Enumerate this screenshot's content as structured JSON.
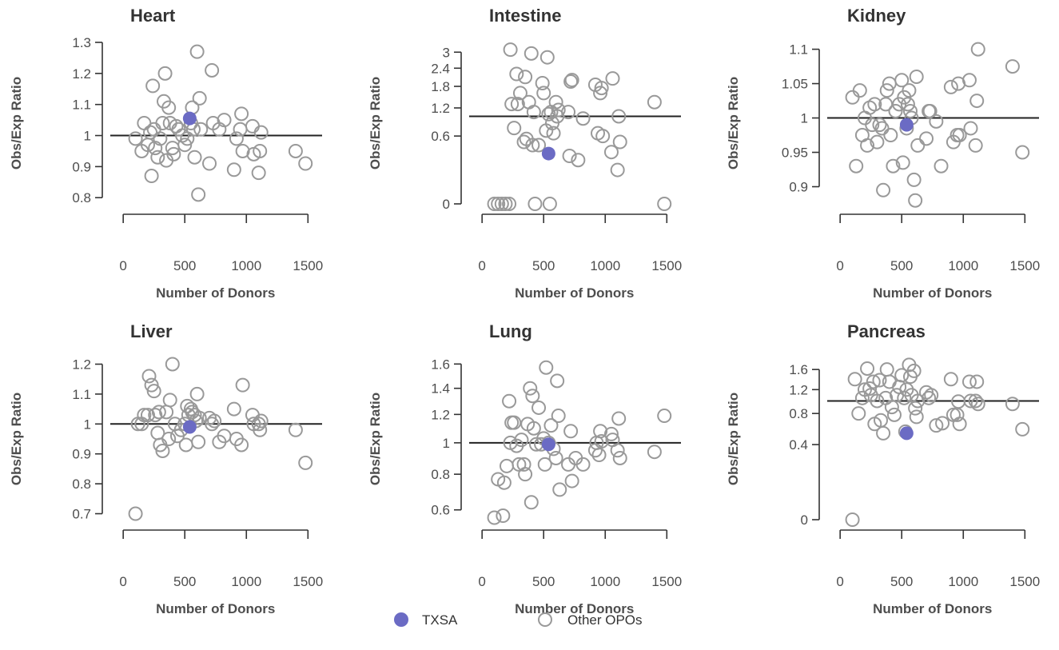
{
  "figure": {
    "legend": {
      "placement": "bottom-center",
      "entries": [
        {
          "label": "TXSA",
          "marker": "filled-circle",
          "color": "#6b6bc4"
        },
        {
          "label": "Other OPOs",
          "marker": "open-circle",
          "color": "#999999"
        }
      ]
    },
    "colors": {
      "highlight": "#6b6bc4",
      "others": "#999999",
      "reference_line": "#222222"
    }
  },
  "chart_data": [
    {
      "type": "scatter",
      "title": "Heart",
      "xlabel": "Number of Donors",
      "ylabel": "Obs/Exp Ratio",
      "x_ticks": [
        "0",
        "500",
        "1000",
        "1500"
      ],
      "y_ticks": [
        "0.8",
        "0.9",
        "1",
        "1.1",
        "1.2",
        "1.3"
      ],
      "xlim": [
        -40,
        1550
      ],
      "ylim": [
        0.78,
        1.3
      ],
      "reference_line_y": 1,
      "highlight": {
        "name": "TXSA",
        "x": 540,
        "y": 1.055
      },
      "others": [
        [
          100,
          0.99
        ],
        [
          150,
          0.95
        ],
        [
          170,
          1.04
        ],
        [
          200,
          0.97
        ],
        [
          220,
          1.01
        ],
        [
          230,
          0.87
        ],
        [
          240,
          1.16
        ],
        [
          250,
          1.02
        ],
        [
          260,
          0.96
        ],
        [
          280,
          0.93
        ],
        [
          300,
          0.99
        ],
        [
          320,
          1.04
        ],
        [
          330,
          1.11
        ],
        [
          340,
          1.2
        ],
        [
          350,
          0.92
        ],
        [
          370,
          1.09
        ],
        [
          380,
          1.04
        ],
        [
          400,
          0.96
        ],
        [
          410,
          0.94
        ],
        [
          430,
          1.03
        ],
        [
          450,
          1.02
        ],
        [
          480,
          1
        ],
        [
          500,
          0.97
        ],
        [
          520,
          0.99
        ],
        [
          550,
          1.04
        ],
        [
          560,
          1.09
        ],
        [
          570,
          1.02
        ],
        [
          580,
          0.93
        ],
        [
          600,
          1.27
        ],
        [
          610,
          0.81
        ],
        [
          620,
          1.12
        ],
        [
          630,
          1.02
        ],
        [
          700,
          0.91
        ],
        [
          720,
          1.21
        ],
        [
          730,
          1.04
        ],
        [
          780,
          1.02
        ],
        [
          820,
          1.05
        ],
        [
          900,
          0.89
        ],
        [
          920,
          0.99
        ],
        [
          950,
          1.02
        ],
        [
          960,
          1.07
        ],
        [
          970,
          0.95
        ],
        [
          1050,
          1.03
        ],
        [
          1060,
          0.94
        ],
        [
          1100,
          0.88
        ],
        [
          1110,
          0.95
        ],
        [
          1120,
          1.01
        ],
        [
          1400,
          0.95
        ],
        [
          1480,
          0.91
        ]
      ]
    },
    {
      "type": "scatter",
      "title": "Intestine",
      "xlabel": "Number of Donors",
      "ylabel": "Obs/Exp Ratio",
      "x_ticks": [
        "0",
        "500",
        "1000",
        "1500"
      ],
      "y_ticks": [
        "0",
        "0.6",
        "1.2",
        "1.8",
        "2.4",
        "3"
      ],
      "scale": "sqrt",
      "xlim": [
        -40,
        1550
      ],
      "ylim": [
        0,
        3.4
      ],
      "reference_line_y": 1,
      "highlight": {
        "name": "TXSA",
        "x": 540,
        "y": 0.33
      },
      "others": [
        [
          100,
          0
        ],
        [
          130,
          0
        ],
        [
          160,
          0
        ],
        [
          190,
          0
        ],
        [
          220,
          0
        ],
        [
          230,
          3.1
        ],
        [
          240,
          1.3
        ],
        [
          260,
          0.75
        ],
        [
          280,
          2.2
        ],
        [
          290,
          1.3
        ],
        [
          310,
          1.6
        ],
        [
          340,
          0.5
        ],
        [
          350,
          2.1
        ],
        [
          360,
          0.55
        ],
        [
          380,
          1.35
        ],
        [
          400,
          2.95
        ],
        [
          410,
          0.45
        ],
        [
          420,
          1.1
        ],
        [
          430,
          0
        ],
        [
          460,
          0.45
        ],
        [
          490,
          1.9
        ],
        [
          500,
          1.6
        ],
        [
          520,
          0.7
        ],
        [
          530,
          2.8
        ],
        [
          540,
          1.05
        ],
        [
          550,
          0
        ],
        [
          560,
          1.1
        ],
        [
          570,
          0.85
        ],
        [
          580,
          0.65
        ],
        [
          600,
          1.35
        ],
        [
          610,
          1
        ],
        [
          620,
          1.15
        ],
        [
          700,
          1.1
        ],
        [
          710,
          0.3
        ],
        [
          720,
          1.95
        ],
        [
          730,
          2
        ],
        [
          780,
          0.25
        ],
        [
          820,
          0.95
        ],
        [
          920,
          1.85
        ],
        [
          940,
          0.65
        ],
        [
          960,
          1.6
        ],
        [
          970,
          1.75
        ],
        [
          980,
          0.6
        ],
        [
          1050,
          0.35
        ],
        [
          1060,
          2.05
        ],
        [
          1100,
          0.15
        ],
        [
          1110,
          1
        ],
        [
          1120,
          0.5
        ],
        [
          1400,
          1.35
        ],
        [
          1480,
          0
        ]
      ]
    },
    {
      "type": "scatter",
      "title": "Kidney",
      "xlabel": "Number of Donors",
      "ylabel": "Obs/Exp Ratio",
      "x_ticks": [
        "0",
        "500",
        "1000",
        "1500"
      ],
      "y_ticks": [
        "0.9",
        "0.95",
        "1",
        "1.05",
        "1.1"
      ],
      "xlim": [
        -40,
        1550
      ],
      "ylim": [
        0.875,
        1.11
      ],
      "reference_line_y": 1,
      "highlight": {
        "name": "TXSA",
        "x": 540,
        "y": 0.99
      },
      "others": [
        [
          100,
          1.03
        ],
        [
          130,
          0.93
        ],
        [
          160,
          1.04
        ],
        [
          180,
          0.975
        ],
        [
          200,
          1
        ],
        [
          220,
          0.96
        ],
        [
          240,
          1.015
        ],
        [
          260,
          0.99
        ],
        [
          280,
          1.02
        ],
        [
          300,
          0.965
        ],
        [
          320,
          0.99
        ],
        [
          340,
          0.985
        ],
        [
          350,
          0.895
        ],
        [
          370,
          1.02
        ],
        [
          380,
          1.04
        ],
        [
          400,
          1.05
        ],
        [
          410,
          0.975
        ],
        [
          430,
          0.93
        ],
        [
          450,
          1.01
        ],
        [
          480,
          1.02
        ],
        [
          500,
          1.055
        ],
        [
          510,
          0.935
        ],
        [
          520,
          1.03
        ],
        [
          540,
          0.985
        ],
        [
          550,
          1.02
        ],
        [
          560,
          1.04
        ],
        [
          570,
          1.01
        ],
        [
          580,
          1
        ],
        [
          600,
          0.91
        ],
        [
          610,
          0.88
        ],
        [
          620,
          1.06
        ],
        [
          630,
          0.96
        ],
        [
          700,
          0.97
        ],
        [
          720,
          1.01
        ],
        [
          730,
          1.01
        ],
        [
          780,
          0.995
        ],
        [
          820,
          0.93
        ],
        [
          900,
          1.045
        ],
        [
          920,
          0.965
        ],
        [
          950,
          0.975
        ],
        [
          960,
          1.05
        ],
        [
          970,
          0.975
        ],
        [
          1050,
          1.055
        ],
        [
          1060,
          0.985
        ],
        [
          1100,
          0.96
        ],
        [
          1110,
          1.025
        ],
        [
          1120,
          1.1
        ],
        [
          1400,
          1.075
        ],
        [
          1480,
          0.95
        ]
      ]
    },
    {
      "type": "scatter",
      "title": "Liver",
      "xlabel": "Number of Donors",
      "ylabel": "Obs/Exp Ratio",
      "x_ticks": [
        "0",
        "500",
        "1000",
        "1500"
      ],
      "y_ticks": [
        "0.7",
        "0.8",
        "0.9",
        "1",
        "1.1",
        "1.2"
      ],
      "xlim": [
        -40,
        1550
      ],
      "ylim": [
        0.68,
        1.22
      ],
      "reference_line_y": 1,
      "highlight": {
        "name": "TXSA",
        "x": 540,
        "y": 0.99
      },
      "others": [
        [
          100,
          0.7
        ],
        [
          120,
          1
        ],
        [
          150,
          1
        ],
        [
          170,
          1.03
        ],
        [
          200,
          1.03
        ],
        [
          210,
          1.16
        ],
        [
          230,
          1.13
        ],
        [
          250,
          1.11
        ],
        [
          260,
          1.03
        ],
        [
          280,
          0.97
        ],
        [
          290,
          1.04
        ],
        [
          300,
          0.93
        ],
        [
          320,
          0.91
        ],
        [
          350,
          1.04
        ],
        [
          370,
          0.95
        ],
        [
          380,
          1.08
        ],
        [
          400,
          1.2
        ],
        [
          420,
          1
        ],
        [
          440,
          0.96
        ],
        [
          470,
          0.98
        ],
        [
          500,
          1
        ],
        [
          510,
          0.93
        ],
        [
          520,
          1.06
        ],
        [
          530,
          1.03
        ],
        [
          550,
          1.05
        ],
        [
          560,
          1.04
        ],
        [
          580,
          1.03
        ],
        [
          590,
          1.01
        ],
        [
          600,
          1.1
        ],
        [
          610,
          0.94
        ],
        [
          620,
          1.02
        ],
        [
          700,
          1.02
        ],
        [
          720,
          1
        ],
        [
          740,
          1.01
        ],
        [
          780,
          0.94
        ],
        [
          820,
          0.96
        ],
        [
          900,
          1.05
        ],
        [
          920,
          0.95
        ],
        [
          960,
          0.93
        ],
        [
          970,
          1.13
        ],
        [
          1050,
          1.03
        ],
        [
          1060,
          1
        ],
        [
          1100,
          1
        ],
        [
          1110,
          0.98
        ],
        [
          1120,
          1.01
        ],
        [
          1400,
          0.98
        ],
        [
          1480,
          0.87
        ]
      ]
    },
    {
      "type": "scatter",
      "title": "Lung",
      "xlabel": "Number of Donors",
      "ylabel": "Obs/Exp Ratio",
      "x_ticks": [
        "0",
        "500",
        "1000",
        "1500"
      ],
      "y_ticks": [
        "0.6",
        "0.8",
        "1",
        "1.2",
        "1.4",
        "1.6"
      ],
      "scale": "sqrt",
      "xlim": [
        -40,
        1550
      ],
      "ylim": [
        0.55,
        1.65
      ],
      "reference_line_y": 1,
      "highlight": {
        "name": "TXSA",
        "x": 540,
        "y": 0.99
      },
      "others": [
        [
          100,
          0.56
        ],
        [
          130,
          0.77
        ],
        [
          170,
          0.57
        ],
        [
          180,
          0.75
        ],
        [
          200,
          0.85
        ],
        [
          220,
          1.3
        ],
        [
          230,
          1
        ],
        [
          240,
          1.14
        ],
        [
          260,
          1.14
        ],
        [
          280,
          0.98
        ],
        [
          300,
          0.86
        ],
        [
          320,
          1.02
        ],
        [
          340,
          0.86
        ],
        [
          350,
          0.8
        ],
        [
          370,
          1.13
        ],
        [
          390,
          1.4
        ],
        [
          400,
          0.64
        ],
        [
          410,
          1.34
        ],
        [
          420,
          1.1
        ],
        [
          440,
          0.99
        ],
        [
          460,
          1.25
        ],
        [
          480,
          0.99
        ],
        [
          500,
          1.03
        ],
        [
          510,
          0.86
        ],
        [
          520,
          1.57
        ],
        [
          540,
          1
        ],
        [
          560,
          1.12
        ],
        [
          580,
          0.96
        ],
        [
          600,
          0.9
        ],
        [
          610,
          1.46
        ],
        [
          620,
          1.19
        ],
        [
          630,
          0.71
        ],
        [
          700,
          0.86
        ],
        [
          720,
          1.08
        ],
        [
          730,
          0.76
        ],
        [
          760,
          0.9
        ],
        [
          820,
          0.86
        ],
        [
          920,
          0.95
        ],
        [
          930,
          1
        ],
        [
          950,
          0.92
        ],
        [
          960,
          1.08
        ],
        [
          970,
          1.01
        ],
        [
          1050,
          1.06
        ],
        [
          1060,
          1.02
        ],
        [
          1100,
          0.95
        ],
        [
          1110,
          1.17
        ],
        [
          1120,
          0.9
        ],
        [
          1400,
          0.94
        ],
        [
          1480,
          1.19
        ]
      ]
    },
    {
      "type": "scatter",
      "title": "Pancreas",
      "xlabel": "Number of Donors",
      "ylabel": "Obs/Exp Ratio",
      "x_ticks": [
        "0",
        "500",
        "1000",
        "1500"
      ],
      "y_ticks": [
        "0",
        "0.4",
        "0.8",
        "1.2",
        "1.6"
      ],
      "scale": "sqrt",
      "xlim": [
        -40,
        1550
      ],
      "ylim": [
        0,
        1.85
      ],
      "reference_line_y": 1,
      "highlight": {
        "name": "TXSA",
        "x": 540,
        "y": 0.53
      },
      "others": [
        [
          100,
          0
        ],
        [
          120,
          1.4
        ],
        [
          150,
          0.8
        ],
        [
          180,
          1.05
        ],
        [
          200,
          1.2
        ],
        [
          220,
          1.62
        ],
        [
          240,
          1.22
        ],
        [
          250,
          1.1
        ],
        [
          270,
          1.35
        ],
        [
          280,
          0.65
        ],
        [
          300,
          1
        ],
        [
          320,
          1.38
        ],
        [
          330,
          0.7
        ],
        [
          350,
          0.53
        ],
        [
          370,
          1.05
        ],
        [
          380,
          1.6
        ],
        [
          400,
          1.35
        ],
        [
          420,
          0.9
        ],
        [
          440,
          0.78
        ],
        [
          460,
          1.1
        ],
        [
          480,
          1.25
        ],
        [
          500,
          1.48
        ],
        [
          520,
          1.05
        ],
        [
          530,
          0.55
        ],
        [
          540,
          1.2
        ],
        [
          560,
          1.7
        ],
        [
          570,
          1.45
        ],
        [
          580,
          1.1
        ],
        [
          600,
          1.57
        ],
        [
          610,
          0.88
        ],
        [
          620,
          0.75
        ],
        [
          630,
          1
        ],
        [
          700,
          1.15
        ],
        [
          720,
          1.05
        ],
        [
          740,
          1.1
        ],
        [
          780,
          0.63
        ],
        [
          830,
          0.66
        ],
        [
          900,
          1.4
        ],
        [
          920,
          0.78
        ],
        [
          950,
          0.78
        ],
        [
          960,
          0.99
        ],
        [
          970,
          0.65
        ],
        [
          1050,
          1.35
        ],
        [
          1060,
          1
        ],
        [
          1100,
          1
        ],
        [
          1110,
          1.35
        ],
        [
          1120,
          0.95
        ],
        [
          1400,
          0.95
        ],
        [
          1480,
          0.58
        ]
      ]
    }
  ]
}
